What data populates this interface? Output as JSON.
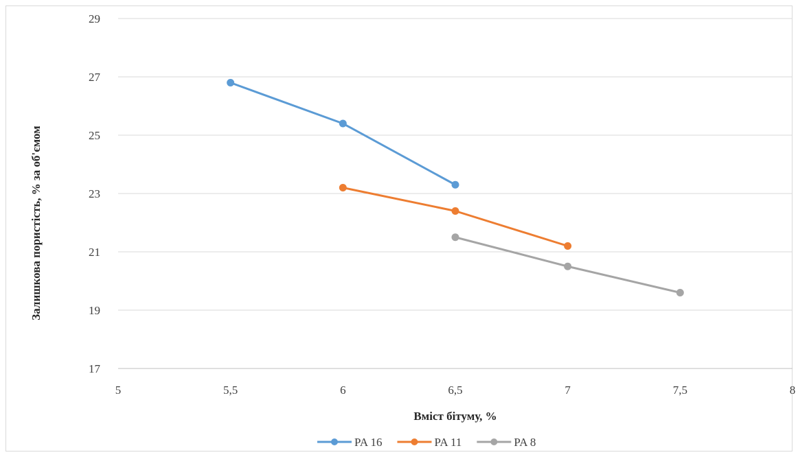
{
  "chart_data": {
    "type": "line",
    "title": "",
    "xlabel": "Вміст бітуму, %",
    "ylabel": "Залишкова пористість, % за об'ємом",
    "xlim": [
      5,
      8
    ],
    "ylim": [
      17,
      29
    ],
    "x_ticks": [
      5,
      5.5,
      6,
      6.5,
      7,
      7.5,
      8
    ],
    "x_tick_labels": [
      "5",
      "5,5",
      "6",
      "6,5",
      "7",
      "7,5",
      "8"
    ],
    "y_ticks": [
      17,
      19,
      21,
      23,
      25,
      27,
      29
    ],
    "y_tick_labels": [
      "17",
      "19",
      "21",
      "23",
      "25",
      "27",
      "29"
    ],
    "grid": "horizontal",
    "legend_position": "bottom",
    "series": [
      {
        "name": "PA 16",
        "color": "#5b9bd5",
        "x": [
          5.5,
          6,
          6.5
        ],
        "y": [
          26.8,
          25.4,
          23.3
        ]
      },
      {
        "name": "PA 11",
        "color": "#ed7d31",
        "x": [
          6,
          6.5,
          7
        ],
        "y": [
          23.2,
          22.4,
          21.2
        ]
      },
      {
        "name": "PA 8",
        "color": "#a5a5a5",
        "x": [
          6.5,
          7,
          7.5
        ],
        "y": [
          21.5,
          20.5,
          19.6
        ]
      }
    ]
  }
}
